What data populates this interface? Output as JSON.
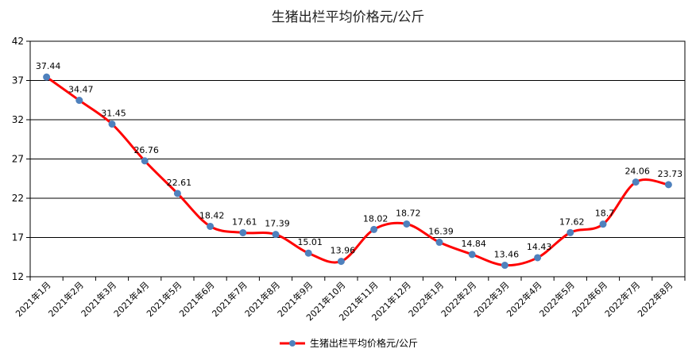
{
  "chart_data": {
    "type": "line",
    "title": "生猪出栏平均价格元/公斤",
    "xlabel": "",
    "ylabel": "",
    "ylim": [
      12,
      42
    ],
    "yticks": [
      12,
      17,
      22,
      27,
      32,
      37,
      42
    ],
    "grid": true,
    "legend": "bottom",
    "categories": [
      "2021年1月",
      "2021年2月",
      "2021年3月",
      "2021年4月",
      "2021年5月",
      "2021年6月",
      "2021年7月",
      "2021年8月",
      "2021年9月",
      "2021年10月",
      "2021年11月",
      "2021年12月",
      "2022年1月",
      "2022年2月",
      "2022年3月",
      "2022年4月",
      "2022年5月",
      "2022年6月",
      "2022年7月",
      "2022年8月"
    ],
    "series": [
      {
        "name": "生猪出栏平均价格元/公斤",
        "values": [
          37.44,
          34.47,
          31.45,
          26.76,
          22.61,
          18.42,
          17.61,
          17.39,
          15.01,
          13.96,
          18.02,
          18.72,
          16.39,
          14.84,
          13.46,
          14.43,
          17.62,
          18.7,
          24.06,
          23.73
        ],
        "labels": [
          "37.44",
          "34.47",
          "31.45",
          "26.76",
          "22.61",
          "18.42",
          "17.61",
          "17.39",
          "15.01",
          "13.96",
          "18.02",
          "18.72",
          "16.39",
          "14.84",
          "13.46",
          "14.43",
          "17.62",
          "18.7",
          "24.06",
          "23.73"
        ],
        "line_color": "#ff0000",
        "marker_color": "#4f81bd"
      }
    ]
  }
}
